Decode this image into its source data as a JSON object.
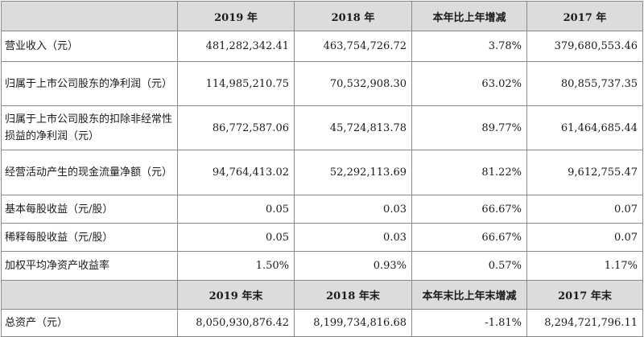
{
  "header": {
    "label": "",
    "cols": [
      "2019 年",
      "2018 年",
      "本年比上年增减",
      "2017 年"
    ]
  },
  "rows": [
    {
      "label": "营业收入（元）",
      "values": [
        "481,282,342.41",
        "463,754,726.72",
        "3.78%",
        "379,680,553.46"
      ]
    },
    {
      "label": "归属于上市公司股东的净利润（元）",
      "values": [
        "114,985,210.75",
        "70,532,908.30",
        "63.02%",
        "80,855,737.35"
      ]
    },
    {
      "label": "归属于上市公司股东的扣除非经常性损益的净利润（元）",
      "values": [
        "86,772,587.06",
        "45,724,813.78",
        "89.77%",
        "61,464,685.44"
      ]
    },
    {
      "label": "经营活动产生的现金流量净额（元）",
      "values": [
        "94,764,413.02",
        "52,292,113.69",
        "81.22%",
        "9,612,755.47"
      ]
    },
    {
      "label": "基本每股收益（元/股）",
      "values": [
        "0.05",
        "0.03",
        "66.67%",
        "0.07"
      ]
    },
    {
      "label": "稀释每股收益（元/股）",
      "values": [
        "0.05",
        "0.03",
        "66.67%",
        "0.07"
      ]
    },
    {
      "label": "加权平均净资产收益率",
      "values": [
        "1.50%",
        "0.93%",
        "0.57%",
        "1.17%"
      ]
    }
  ],
  "header2": {
    "label": "",
    "cols": [
      "2019 年末",
      "2018 年末",
      "本年末比上年末增减",
      "2017 年末"
    ]
  },
  "rows2": [
    {
      "label": "总资产（元）",
      "values": [
        "8,050,930,876.42",
        "8,199,734,816.68",
        "-1.81%",
        "8,294,721,796.11"
      ]
    }
  ]
}
